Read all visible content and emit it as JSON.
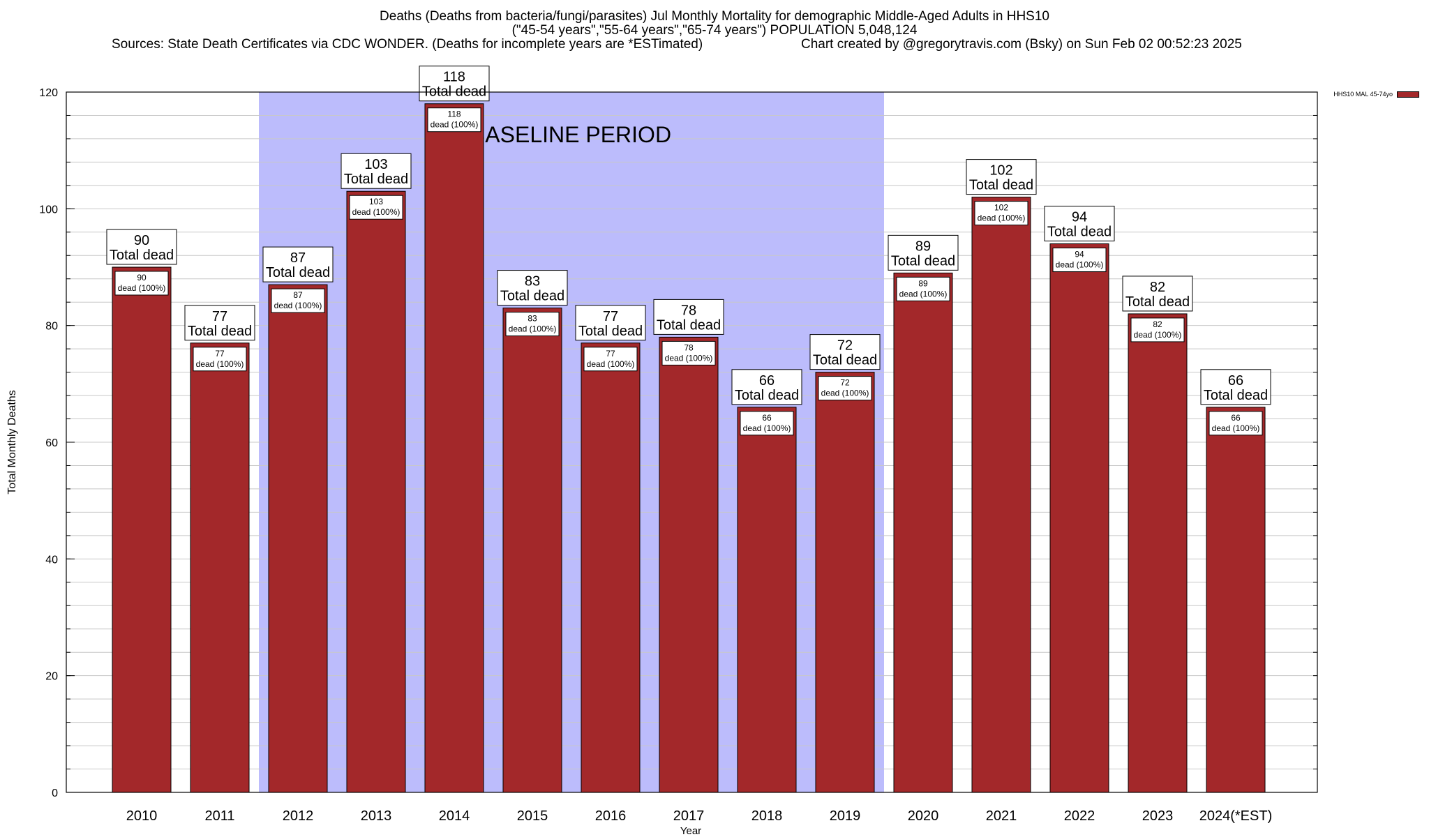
{
  "header": {
    "title_line1": "Deaths (Deaths from bacteria/fungi/parasites) Jul Monthly Mortality for demographic Middle-Aged Adults in HHS10",
    "title_line2": "(\"45-54 years\",\"55-64 years\",\"65-74 years\") POPULATION 5,048,124",
    "sources": "Sources: State Death Certificates via CDC WONDER. (Deaths for incomplete years are *ESTimated)",
    "credit": "Chart created by @gregorytravis.com (Bsky) on Sun Feb 02 00:52:23 2025"
  },
  "legend": {
    "label": "HHS10 MAL 45-74yo"
  },
  "chart_data": {
    "type": "bar",
    "xlabel": "Year",
    "ylabel": "Total Monthly Deaths",
    "ylim": [
      0,
      120
    ],
    "yticks": [
      0,
      20,
      40,
      60,
      80,
      100,
      120
    ],
    "categories": [
      "2010",
      "2011",
      "2012",
      "2013",
      "2014",
      "2015",
      "2016",
      "2017",
      "2018",
      "2019",
      "2020",
      "2021",
      "2022",
      "2023",
      "2024(*EST)"
    ],
    "series": [
      {
        "name": "HHS10 MAL 45-74yo",
        "values": [
          90,
          77,
          87,
          103,
          118,
          83,
          77,
          78,
          66,
          72,
          89,
          102,
          94,
          82,
          66
        ]
      }
    ],
    "total_label": "Total dead",
    "inner_label": "dead (100%)",
    "baseline": {
      "label": "BASELINE PERIOD",
      "from": "2012",
      "to": "2019"
    },
    "colors": {
      "bar": "#a3282a",
      "baseline": "#bcbcfc",
      "grid": "#c8c8c8"
    },
    "grid": true,
    "legend_position": "top-right"
  }
}
